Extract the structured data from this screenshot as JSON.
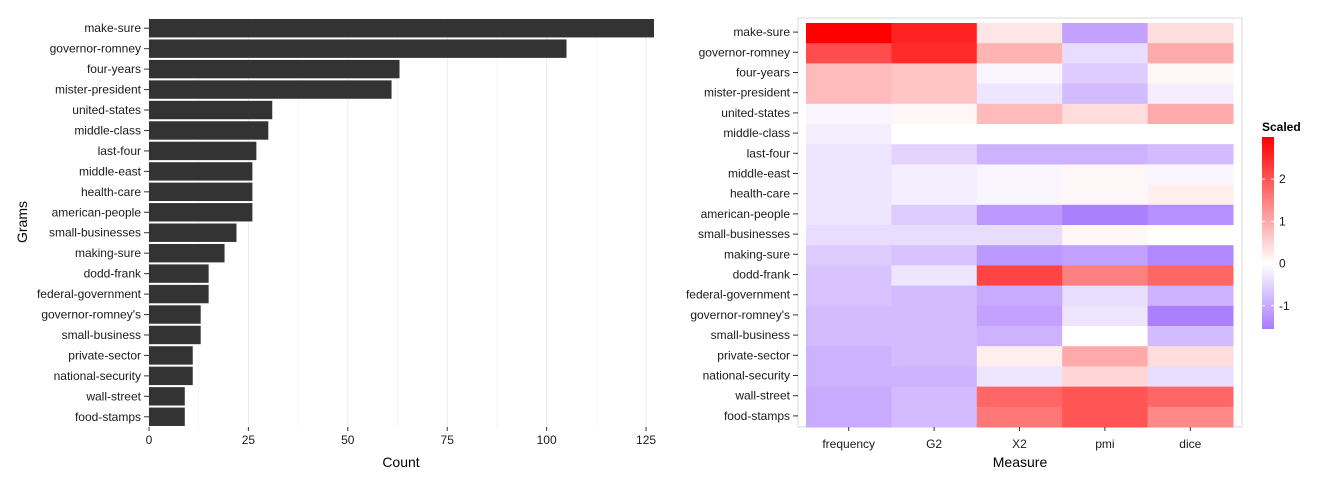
{
  "chart_data": [
    {
      "type": "bar",
      "orientation": "horizontal",
      "xlabel": "Count",
      "ylabel": "Grams",
      "xlim": [
        0,
        127
      ],
      "x_ticks": [
        "0",
        "25",
        "50",
        "75",
        "100",
        "125"
      ],
      "grid": true,
      "categories": [
        "make-sure",
        "governor-romney",
        "four-years",
        "mister-president",
        "united-states",
        "middle-class",
        "last-four",
        "middle-east",
        "health-care",
        "american-people",
        "small-businesses",
        "making-sure",
        "dodd-frank",
        "federal-government",
        "governor-romney's",
        "small-business",
        "private-sector",
        "national-security",
        "wall-street",
        "food-stamps"
      ],
      "values": [
        127,
        105,
        63,
        61,
        31,
        30,
        27,
        26,
        26,
        26,
        22,
        19,
        15,
        15,
        13,
        13,
        11,
        11,
        9,
        9
      ],
      "bar_color": "#333333"
    },
    {
      "type": "heatmap",
      "xlabel": "Measure",
      "ylabel": "",
      "columns": [
        "frequency",
        "G2",
        "X2",
        "pmi",
        "dice"
      ],
      "rows": [
        "make-sure",
        "governor-romney",
        "four-years",
        "mister-president",
        "united-states",
        "middle-class",
        "last-four",
        "middle-east",
        "health-care",
        "american-people",
        "small-businesses",
        "making-sure",
        "dodd-frank",
        "federal-government",
        "governor-romney's",
        "small-business",
        "private-sector",
        "national-security",
        "wall-street",
        "food-stamps"
      ],
      "values": [
        [
          3.0,
          2.6,
          0.3,
          -1.1,
          0.4
        ],
        [
          2.1,
          2.5,
          0.9,
          -0.4,
          1.0
        ],
        [
          0.8,
          0.7,
          -0.1,
          -0.6,
          0.1
        ],
        [
          0.8,
          0.7,
          -0.3,
          -0.8,
          -0.2
        ],
        [
          -0.1,
          0.1,
          0.8,
          0.4,
          1.0
        ],
        [
          -0.2,
          0.0,
          0.0,
          0.0,
          0.0
        ],
        [
          -0.3,
          -0.5,
          -0.9,
          -0.9,
          -0.8
        ],
        [
          -0.3,
          -0.2,
          -0.1,
          0.1,
          -0.1
        ],
        [
          -0.3,
          -0.2,
          -0.1,
          0.1,
          0.2
        ],
        [
          -0.3,
          -0.6,
          -1.2,
          -1.5,
          -1.3
        ],
        [
          -0.4,
          -0.4,
          -0.4,
          0.1,
          0.0
        ],
        [
          -0.6,
          -0.7,
          -1.2,
          -1.1,
          -1.4
        ],
        [
          -0.7,
          -0.3,
          2.2,
          1.5,
          1.8
        ],
        [
          -0.7,
          -0.8,
          -1.0,
          -0.4,
          -0.9
        ],
        [
          -0.8,
          -0.8,
          -1.1,
          -0.3,
          -1.5
        ],
        [
          -0.8,
          -0.8,
          -0.9,
          0.0,
          -0.8
        ],
        [
          -0.9,
          -0.8,
          0.2,
          1.0,
          0.4
        ],
        [
          -0.9,
          -0.9,
          -0.3,
          0.5,
          -0.4
        ],
        [
          -1.0,
          -0.8,
          1.8,
          2.0,
          1.8
        ],
        [
          -1.0,
          -0.8,
          1.6,
          2.0,
          1.4
        ]
      ],
      "legend": {
        "title": "Scaled",
        "placement": "right",
        "ticks": [
          "2",
          "1",
          "0",
          "-1"
        ],
        "tick_values": [
          2,
          1,
          0,
          -1
        ],
        "range": [
          -1.55,
          3.0
        ],
        "low_color": "#a97bff",
        "mid_color": "#ffffff",
        "high_color": "#ff0000"
      }
    }
  ]
}
